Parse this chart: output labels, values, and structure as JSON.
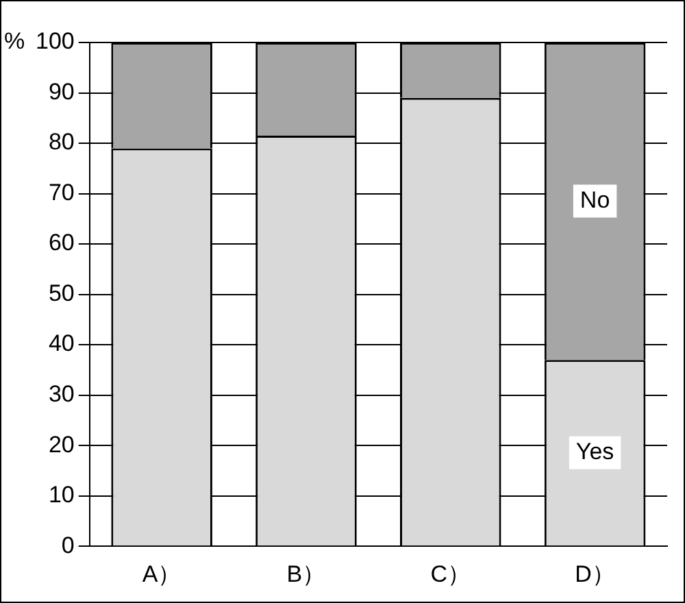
{
  "chart_data": {
    "type": "bar",
    "stacked": true,
    "ylabel": "%",
    "categories": [
      "A）",
      "B）",
      "C）",
      "D）"
    ],
    "series": [
      {
        "name": "Yes",
        "color": "#d9d9d9",
        "values": [
          79,
          81.5,
          89,
          37
        ]
      },
      {
        "name": "No",
        "color": "#a6a6a6",
        "values": [
          21,
          18.5,
          11,
          63
        ]
      }
    ],
    "ylim": [
      0,
      100
    ],
    "yticks": [
      0,
      10,
      20,
      30,
      40,
      50,
      60,
      70,
      80,
      90,
      100
    ],
    "grid": "y",
    "legend": false
  }
}
